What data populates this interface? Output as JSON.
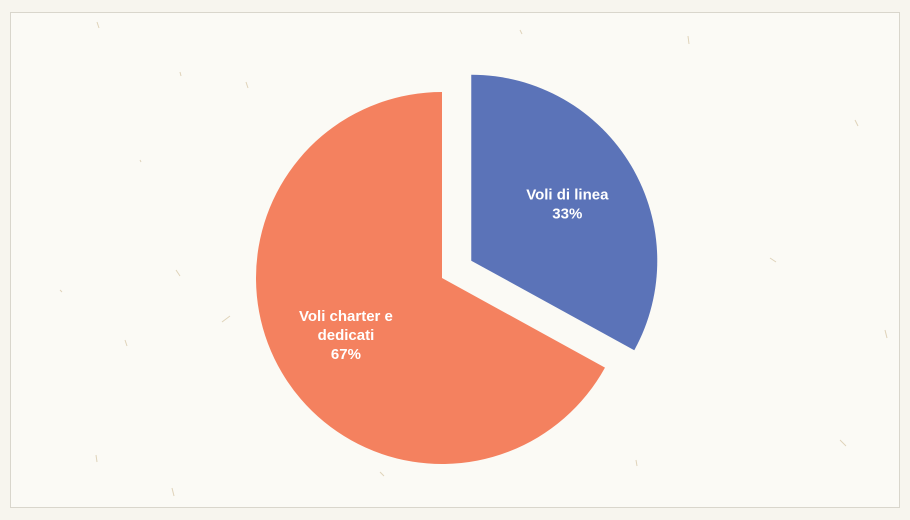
{
  "chart_data": {
    "type": "pie",
    "title": "",
    "slices": [
      {
        "label_lines": [
          "Voli di linea",
          "33%"
        ],
        "value": 33,
        "color": "#5b73b8",
        "exploded": true
      },
      {
        "label_lines": [
          "Voli charter e",
          "dedicati",
          "67%"
        ],
        "value": 67,
        "color": "#f4815f",
        "exploded": false
      }
    ],
    "legend": "none",
    "start_angle_deg": 0,
    "direction": "clockwise"
  }
}
